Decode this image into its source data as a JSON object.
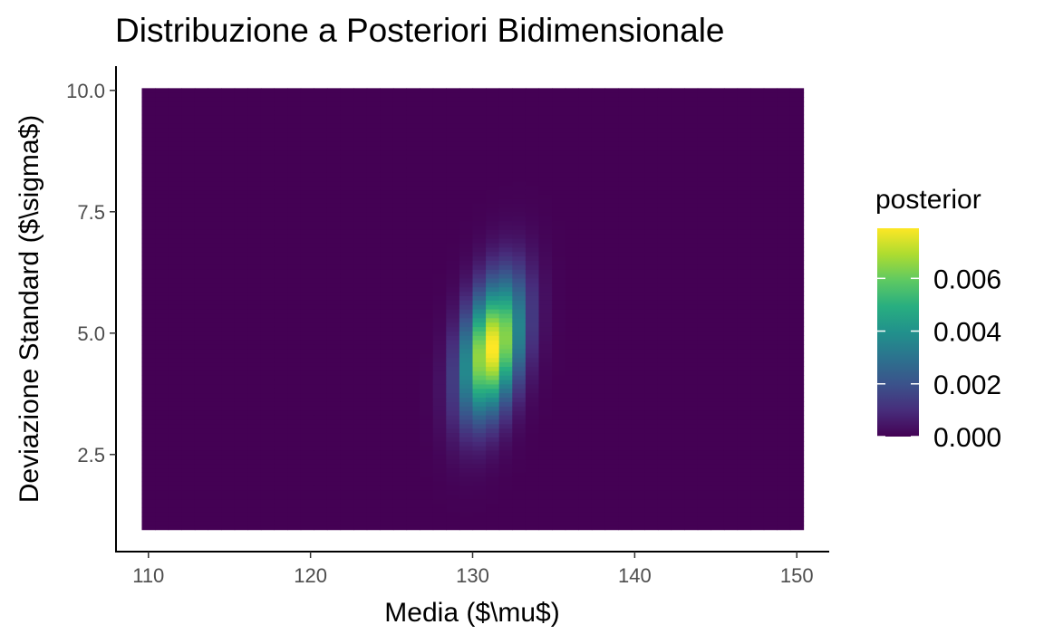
{
  "chart_data": {
    "type": "heatmap",
    "title": "Distribuzione a Posteriori Bidimensionale",
    "xlabel": "Media ($\\mu$)",
    "ylabel": "Deviazione Standard ($\\sigma$)",
    "xlim": [
      108,
      152
    ],
    "ylim": [
      0.5,
      10.5
    ],
    "x_range": [
      110,
      150
    ],
    "y_range": [
      1,
      10
    ],
    "x_ticks": [
      110,
      120,
      130,
      140,
      150
    ],
    "x_tick_labels": [
      "110",
      "120",
      "130",
      "140",
      "150"
    ],
    "y_ticks": [
      2.5,
      5.0,
      7.5,
      10.0
    ],
    "y_tick_labels": [
      "2.5",
      "5.0",
      "7.5",
      "10.0"
    ],
    "grid_x_steps": 50,
    "grid_y_steps": 100,
    "posterior_mode": {
      "mu": 131.2,
      "sigma": 4.7
    },
    "posterior_spread": {
      "mu_sd": 1.3,
      "sigma_sd": 0.95,
      "correlation": 0.35
    },
    "max_value": 0.0079,
    "colorscale": "viridis",
    "legend": {
      "title": "posterior",
      "position": "right",
      "ticks": [
        0.0,
        0.002,
        0.004,
        0.006
      ],
      "tick_labels": [
        "0.000",
        "0.002",
        "0.004",
        "0.006"
      ],
      "range": [
        0.0,
        0.0079
      ]
    }
  }
}
